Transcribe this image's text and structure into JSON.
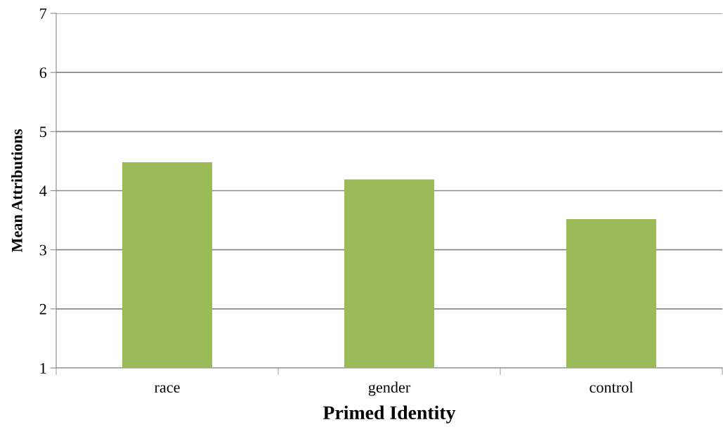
{
  "chart_data": {
    "type": "bar",
    "xlabel": "Primed Identity",
    "ylabel": "Mean Attributions",
    "categories": [
      "race",
      "gender",
      "control"
    ],
    "values": [
      4.48,
      4.19,
      3.52
    ],
    "color": "#9bbb59",
    "ylim": [
      1,
      7
    ],
    "yticks": [
      1,
      2,
      3,
      4,
      5,
      6,
      7
    ],
    "grid": "y",
    "legend": false
  }
}
